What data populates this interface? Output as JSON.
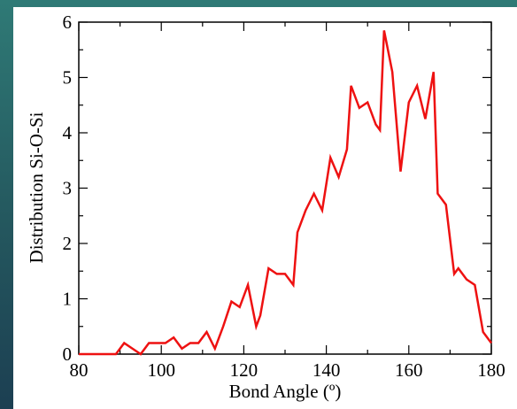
{
  "chart_data": {
    "type": "line",
    "x_label": "Bond Angle (º)",
    "y_label": "Distribution Si-O-Si",
    "x": [
      80,
      89,
      91,
      93,
      95,
      97,
      99,
      101,
      103,
      105,
      107,
      109,
      111,
      113,
      115,
      117,
      119,
      121,
      123,
      124,
      126,
      128,
      130,
      132,
      133,
      135,
      137,
      139,
      141,
      143,
      145,
      146,
      148,
      150,
      152,
      153,
      154,
      156,
      158,
      160,
      162,
      164,
      166,
      167,
      169,
      171,
      172,
      174,
      176,
      178,
      180
    ],
    "series": [
      {
        "name": null,
        "color": "#ee1111",
        "values": [
          0,
          0,
          0.2,
          0.1,
          0,
          0.2,
          0.2,
          0.2,
          0.3,
          0.1,
          0.2,
          0.2,
          0.4,
          0.1,
          0.5,
          0.95,
          0.85,
          1.25,
          0.5,
          0.7,
          1.55,
          1.45,
          1.45,
          1.25,
          2.2,
          2.6,
          2.9,
          2.6,
          3.55,
          3.2,
          3.7,
          4.85,
          4.45,
          4.55,
          4.15,
          4.05,
          5.85,
          5.1,
          3.3,
          4.55,
          4.85,
          4.25,
          5.1,
          2.9,
          2.7,
          1.45,
          1.55,
          1.35,
          1.25,
          0.4,
          0.2
        ]
      }
    ],
    "xlim": [
      80,
      180
    ],
    "xticks": [
      80,
      100,
      120,
      140,
      160,
      180
    ],
    "ylim": [
      0,
      6
    ],
    "yticks": [
      0,
      1,
      2,
      3,
      4,
      5,
      6
    ],
    "grid": false
  }
}
